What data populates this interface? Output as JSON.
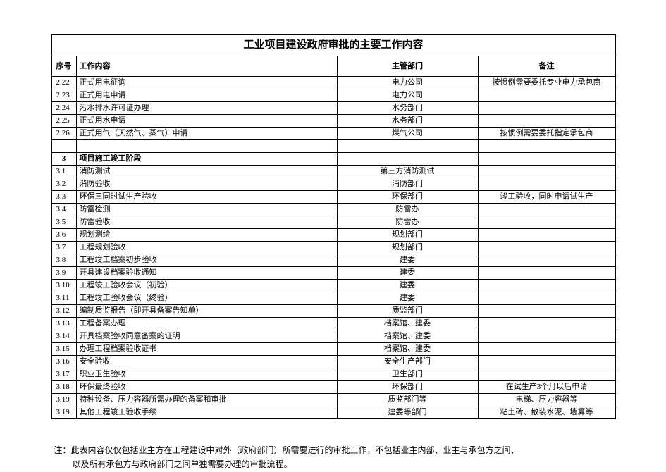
{
  "table": {
    "title": "工业项目建设政府审批的主要工作内容",
    "columns": {
      "num": "序号",
      "work": "工作内容",
      "dept": "主管部门",
      "note": "备注"
    },
    "rows": [
      {
        "num": "2.22",
        "work": "正式用电征询",
        "dept": "电力公司",
        "note": "按惯例需要委托专业电力承包商",
        "type": "item"
      },
      {
        "num": "2.23",
        "work": "正式用电申请",
        "dept": "电力公司",
        "note": "",
        "type": "item"
      },
      {
        "num": "2.24",
        "work": "污水排水许可证办理",
        "dept": "水务部门",
        "note": "",
        "type": "item"
      },
      {
        "num": "2.25",
        "work": "正式用水申请",
        "dept": "水务部门",
        "note": "",
        "type": "item"
      },
      {
        "num": "2.26",
        "work": "正式用气（天然气、蒸气）申请",
        "dept": "煤气公司",
        "note": "按惯例需要委托指定承包商",
        "type": "item"
      },
      {
        "type": "blank"
      },
      {
        "num": "3",
        "work": "项目施工竣工阶段",
        "dept": "",
        "note": "",
        "type": "section"
      },
      {
        "num": "3.1",
        "work": "消防测试",
        "dept": "第三方消防测试",
        "note": "",
        "type": "item"
      },
      {
        "num": "3.2",
        "work": "消防验收",
        "dept": "消防部门",
        "note": "",
        "type": "item"
      },
      {
        "num": "3.3",
        "work": "环保三同时试生产验收",
        "dept": "环保部门",
        "note": "竣工验收，同时申请试生产",
        "type": "item"
      },
      {
        "num": "3.4",
        "work": "防雷检测",
        "dept": "防雷办",
        "note": "",
        "type": "item"
      },
      {
        "num": "3.5",
        "work": "防雷验收",
        "dept": "防雷办",
        "note": "",
        "type": "item"
      },
      {
        "num": "3.6",
        "work": "规划测绘",
        "dept": "规划部门",
        "note": "",
        "type": "item"
      },
      {
        "num": "3.7",
        "work": "工程规划验收",
        "dept": "规划部门",
        "note": "",
        "type": "item"
      },
      {
        "num": "3.8",
        "work": "工程竣工档案初步验收",
        "dept": "建委",
        "note": "",
        "type": "item"
      },
      {
        "num": "3.9",
        "work": "开具建设档案验收通知",
        "dept": "建委",
        "note": "",
        "type": "item"
      },
      {
        "num": "3.10",
        "work": "工程竣工验收会议（初验）",
        "dept": "建委",
        "note": "",
        "type": "item"
      },
      {
        "num": "3.11",
        "work": "工程竣工验收会议（终验）",
        "dept": "建委",
        "note": "",
        "type": "item"
      },
      {
        "num": "3.12",
        "work": "编制质监报告（即开具备案告知单）",
        "dept": "质监部门",
        "note": "",
        "type": "item"
      },
      {
        "num": "3.13",
        "work": "工程备案办理",
        "dept": "档案馆、建委",
        "note": "",
        "type": "item"
      },
      {
        "num": "3.14",
        "work": "开具档案验收同意备案的证明",
        "dept": "档案馆、建委",
        "note": "",
        "type": "item"
      },
      {
        "num": "3.15",
        "work": "办理工程档案验收证书",
        "dept": "档案馆、建委",
        "note": "",
        "type": "item"
      },
      {
        "num": "3.16",
        "work": "安全验收",
        "dept": "安全生产部门",
        "note": "",
        "type": "item"
      },
      {
        "num": "3.17",
        "work": "职业卫生验收",
        "dept": "卫生部门",
        "note": "",
        "type": "item"
      },
      {
        "num": "3.18",
        "work": "环保最终验收",
        "dept": "环保部门",
        "note": "在试生产3个月以后申请",
        "type": "item"
      },
      {
        "num": "3.19",
        "work": "特种设备、压力容器所需办理的备案和审批",
        "dept": "质监部门等",
        "note": "电梯、压力容器等",
        "type": "item"
      },
      {
        "num": "3.19",
        "work": "其他工程竣工验收手续",
        "dept": "建委等部门",
        "note": "粘土砖、散装水泥、墙算等",
        "type": "item"
      }
    ]
  },
  "footnote": {
    "line1": "注：此表内容仅仅包括业主方在工程建设中对外（政府部门）所需要进行的审批工作，不包括业主内部、业主与承包方之间、",
    "line2": "以及所有承包方与政府部门之间单独需要办理的审批流程。"
  }
}
